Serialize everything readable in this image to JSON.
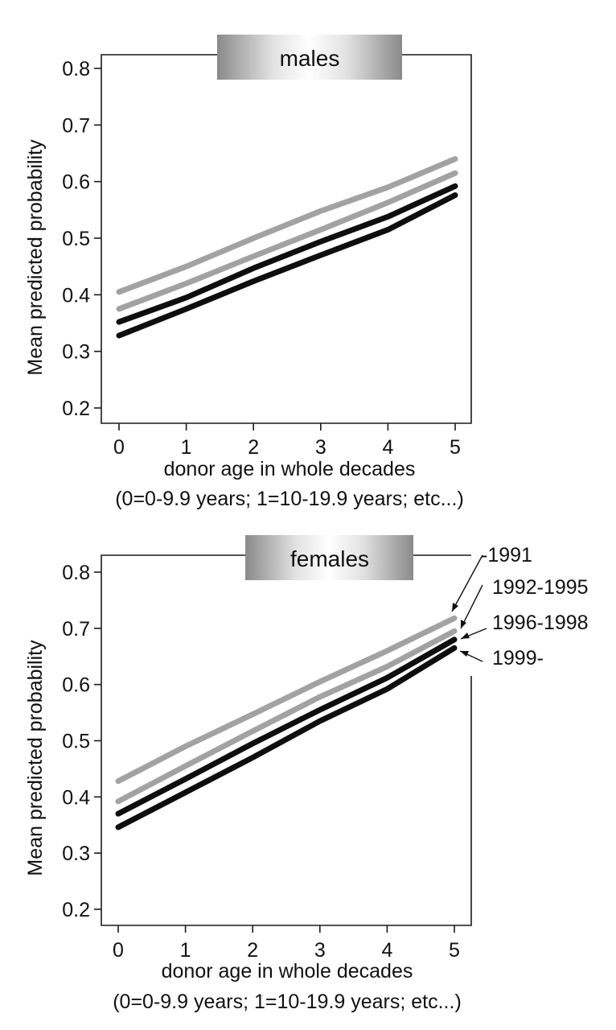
{
  "figure": {
    "ylabel": "Mean predicted probability",
    "xlabel": "donor age in whole decades",
    "xlabel_note": "(0=0-9.9 years; 1=10-19.9 years; etc...)",
    "colors": {
      "gray": "#a2a2a2",
      "black": "#0e0e0e",
      "axis": "#1a1a1a"
    }
  },
  "chart_data": [
    {
      "type": "line",
      "title": "males",
      "xlabel": "donor age in whole decades",
      "xlabel_note": "(0=0-9.9 years; 1=10-19.9 years; etc...)",
      "ylabel": "Mean predicted probability",
      "x": [
        0,
        1,
        2,
        3,
        4,
        5
      ],
      "xticks": [
        "0",
        "1",
        "2",
        "3",
        "4",
        "5"
      ],
      "yticks": [
        "0.2",
        "0.3",
        "0.4",
        "0.5",
        "0.6",
        "0.7",
        "0.8"
      ],
      "ylim": [
        0.2,
        0.8
      ],
      "series": [
        {
          "name": "-1991",
          "color": "#a2a2a2",
          "values": [
            0.405,
            0.45,
            0.5,
            0.548,
            0.59,
            0.64
          ]
        },
        {
          "name": "1992-1995",
          "color": "#a2a2a2",
          "values": [
            0.375,
            0.42,
            0.468,
            0.515,
            0.563,
            0.615
          ]
        },
        {
          "name": "1996-1998",
          "color": "#0e0e0e",
          "values": [
            0.352,
            0.395,
            0.447,
            0.494,
            0.538,
            0.592
          ]
        },
        {
          "name": "1999-",
          "color": "#0e0e0e",
          "values": [
            0.328,
            0.375,
            0.424,
            0.47,
            0.515,
            0.576
          ]
        }
      ]
    },
    {
      "type": "line",
      "title": "females",
      "xlabel": "donor age in whole decades",
      "xlabel_note": "(0=0-9.9 years; 1=10-19.9 years; etc...)",
      "ylabel": "Mean predicted probability",
      "x": [
        0,
        1,
        2,
        3,
        4,
        5
      ],
      "xticks": [
        "0",
        "1",
        "2",
        "3",
        "4",
        "5"
      ],
      "yticks": [
        "0.2",
        "0.3",
        "0.4",
        "0.5",
        "0.6",
        "0.7",
        "0.8"
      ],
      "ylim": [
        0.2,
        0.8
      ],
      "legend": [
        "-1991",
        "1992-1995",
        "1996-1998",
        "1999-"
      ],
      "series": [
        {
          "name": "-1991",
          "color": "#a2a2a2",
          "values": [
            0.428,
            0.49,
            0.547,
            0.605,
            0.66,
            0.718
          ]
        },
        {
          "name": "1992-1995",
          "color": "#a2a2a2",
          "values": [
            0.392,
            0.455,
            0.517,
            0.578,
            0.632,
            0.695
          ]
        },
        {
          "name": "1996-1998",
          "color": "#0e0e0e",
          "values": [
            0.37,
            0.432,
            0.495,
            0.555,
            0.612,
            0.68
          ]
        },
        {
          "name": "1999-",
          "color": "#0e0e0e",
          "values": [
            0.346,
            0.408,
            0.47,
            0.535,
            0.592,
            0.665
          ]
        }
      ]
    }
  ]
}
